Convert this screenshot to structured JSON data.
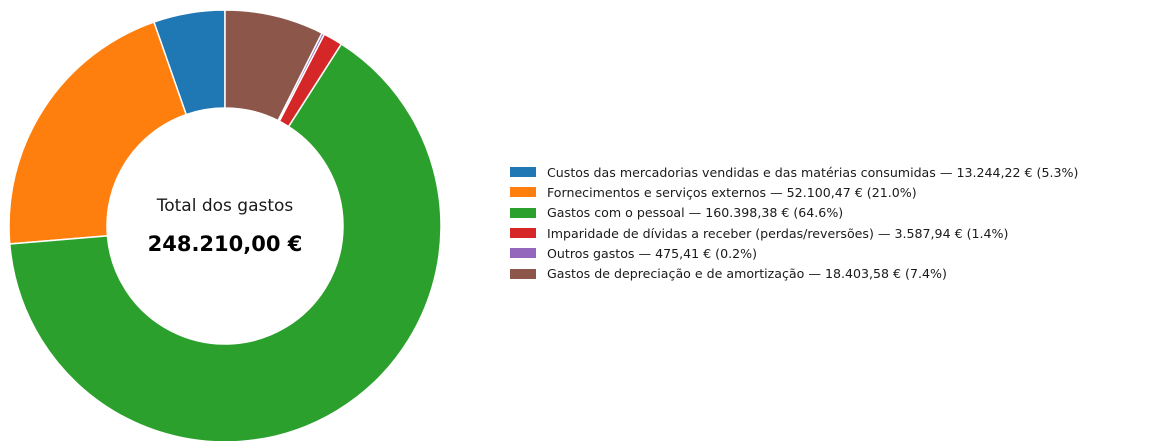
{
  "chart_data": {
    "type": "pie",
    "center_title": "Total dos gastos",
    "center_value": "248.210,00 €",
    "slices": [
      {
        "label": "Custos das mercadorias vendidas e das matérias consumidas — 13.244,22 € (5.3%)",
        "value": 13244.22,
        "color": "#1f77b4"
      },
      {
        "label": "Fornecimentos e serviços externos — 52.100,47 € (21.0%)",
        "value": 52100.47,
        "color": "#ff7f0e"
      },
      {
        "label": "Gastos com o pessoal — 160.398,38 € (64.6%)",
        "value": 160398.38,
        "color": "#2ca02c"
      },
      {
        "label": "Imparidade de dívidas a receber (perdas/reversões) — 3.587,94 € (1.4%)",
        "value": 3587.94,
        "color": "#d62728"
      },
      {
        "label": "Outros gastos — 475,41 € (0.2%)",
        "value": 475.41,
        "color": "#9467bd"
      },
      {
        "label": "Gastos de depreciação e de amortização — 18.403,58 € (7.4%)",
        "value": 18403.58,
        "color": "#8c564b"
      }
    ],
    "direction": "counterclockwise",
    "start": "top",
    "legend_position": "right"
  }
}
